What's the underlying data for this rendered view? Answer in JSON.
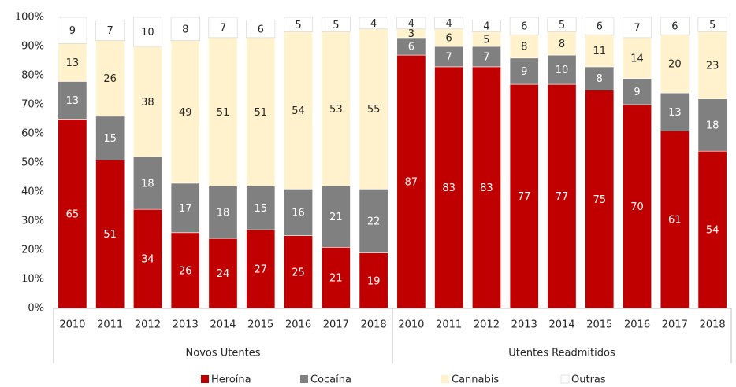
{
  "chart_data": {
    "type": "stacked_bar",
    "groups": [
      "Novos Utentes",
      "Utentes Readmitidos"
    ],
    "categories": [
      "2010",
      "2011",
      "2012",
      "2013",
      "2014",
      "2015",
      "2016",
      "2017",
      "2018",
      "2010",
      "2011",
      "2012",
      "2013",
      "2014",
      "2015",
      "2016",
      "2017",
      "2018"
    ],
    "series": [
      {
        "name": "Heroína",
        "color": "#c00000",
        "values": [
          65,
          51,
          34,
          26,
          24,
          27,
          25,
          21,
          19,
          87,
          83,
          83,
          77,
          77,
          75,
          70,
          61,
          54
        ]
      },
      {
        "name": "Cocaína",
        "color": "#808080",
        "values": [
          13,
          15,
          18,
          17,
          18,
          15,
          16,
          21,
          22,
          6,
          7,
          7,
          9,
          10,
          8,
          9,
          13,
          18
        ]
      },
      {
        "name": "Cannabis",
        "color": "#fff2cc",
        "values": [
          13,
          26,
          38,
          49,
          51,
          51,
          54,
          53,
          55,
          3,
          6,
          5,
          8,
          8,
          11,
          14,
          20,
          23
        ]
      },
      {
        "name": "Outras",
        "color": "#ffffff",
        "values": [
          9,
          7,
          10,
          8,
          7,
          6,
          5,
          5,
          4,
          4,
          4,
          4,
          6,
          5,
          6,
          7,
          6,
          5
        ]
      }
    ],
    "ylim": [
      0,
      100
    ],
    "yticks": [
      {
        "value": 0,
        "label": "0%"
      },
      {
        "value": 10,
        "label": "10%"
      },
      {
        "value": 20,
        "label": "20%"
      },
      {
        "value": 30,
        "label": "30%"
      },
      {
        "value": 40,
        "label": "40%"
      },
      {
        "value": 50,
        "label": "50%"
      },
      {
        "value": 60,
        "label": "60%"
      },
      {
        "value": 70,
        "label": "70%"
      },
      {
        "value": 80,
        "label": "80%"
      },
      {
        "value": 90,
        "label": "90%"
      },
      {
        "value": 100,
        "label": "100%"
      }
    ],
    "legend": "bottom"
  }
}
